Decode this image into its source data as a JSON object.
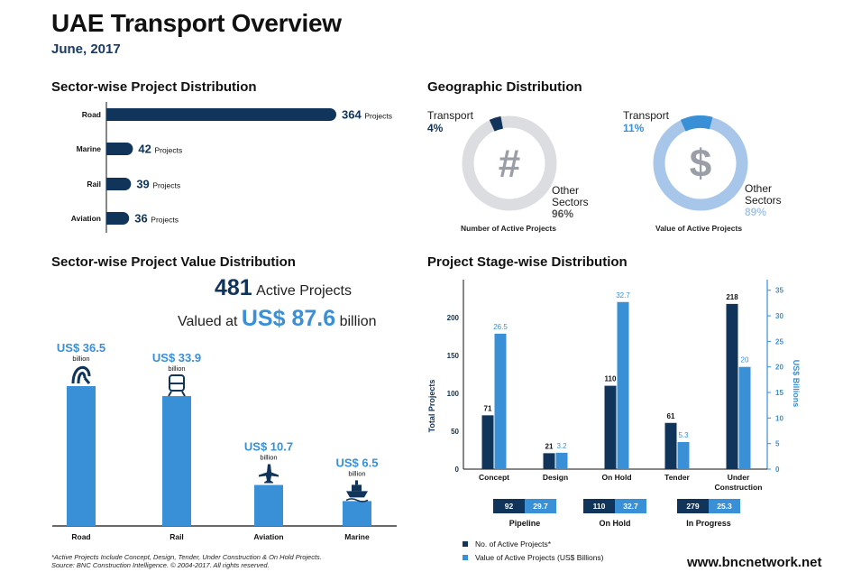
{
  "header": {
    "title": "UAE Transport Overview",
    "date": "June, 2017"
  },
  "sections": {
    "sector_projects": "Sector-wise Project Distribution",
    "geo": "Geographic Distribution",
    "sector_value": "Sector-wise Project Value Distribution",
    "stage": "Project Stage-wise Distribution"
  },
  "geo": {
    "left": {
      "transport_label": "Transport",
      "transport_pct": "4%",
      "other_label1": "Other",
      "other_label2": "Sectors",
      "other_pct": "96%",
      "caption": "Number of Active Projects",
      "icon_symbol": "#",
      "transport_value": 4
    },
    "right": {
      "transport_label": "Transport",
      "transport_pct": "11%",
      "other_label1": "Other",
      "other_label2": "Sectors",
      "other_pct": "89%",
      "caption": "Value of Active Projects",
      "icon_symbol": "$",
      "transport_value": 11
    }
  },
  "value_summary": {
    "count": "481",
    "count_text": "Active Projects",
    "valued_prefix": "Valued at",
    "valued_amount": "US$ 87.6",
    "valued_suffix": "billion"
  },
  "footer": {
    "note1": "*Active Projects Include Concept, Design, Tender, Under Construction & On Hold Projects.",
    "note2": "Source: BNC Construction Intelligence. © 2004-2017. All rights reserved.",
    "website": "www.bncnetwork.net"
  },
  "colors": {
    "navy": "#10345a",
    "blue": "#3a90d6",
    "light": "#a7c6ea",
    "ring": "#dcdde1"
  },
  "chart_data": [
    {
      "type": "bar",
      "orientation": "horizontal",
      "title": "Sector-wise Project Distribution",
      "categories": [
        "Road",
        "Marine",
        "Rail",
        "Aviation"
      ],
      "values": [
        364,
        42,
        39,
        36
      ],
      "value_suffix": "Projects"
    },
    {
      "type": "pie",
      "title": "Number of Active Projects",
      "labels": [
        "Transport",
        "Other Sectors"
      ],
      "values": [
        4,
        96
      ]
    },
    {
      "type": "pie",
      "title": "Value of Active Projects",
      "labels": [
        "Transport",
        "Other Sectors"
      ],
      "values": [
        11,
        89
      ]
    },
    {
      "type": "bar",
      "title": "Sector-wise Project Value Distribution",
      "categories": [
        "Road",
        "Rail",
        "Aviation",
        "Marine"
      ],
      "values": [
        36.5,
        33.9,
        10.7,
        6.5
      ],
      "value_labels": [
        "US$ 36.5",
        "US$ 33.9",
        "US$ 10.7",
        "US$ 6.5"
      ],
      "unit": "billion"
    },
    {
      "type": "bar",
      "title": "Project Stage-wise Distribution",
      "categories": [
        "Concept",
        "Design",
        "On Hold",
        "Tender",
        "Under Construction"
      ],
      "category_lines": [
        [
          "Concept"
        ],
        [
          "Design"
        ],
        [
          "On Hold"
        ],
        [
          "Tender"
        ],
        [
          "Under",
          "Construction"
        ]
      ],
      "ylabel": "Total Projects",
      "y2label": "US$ Billions",
      "ylim": [
        0,
        250
      ],
      "y2lim": [
        0,
        37
      ],
      "yticks": [
        0,
        50,
        100,
        150,
        200
      ],
      "y2ticks": [
        0,
        5,
        10,
        15,
        20,
        25,
        30,
        35
      ],
      "series": [
        {
          "name": "No. of Active Projects*",
          "axis": "left",
          "values": [
            71,
            21,
            110,
            61,
            218
          ]
        },
        {
          "name": "Value of Active Projects (US$ Billions)",
          "axis": "right",
          "values": [
            26.5,
            3.2,
            32.7,
            5.3,
            20
          ]
        }
      ],
      "summary": [
        {
          "label": "Pipeline",
          "projects": "92",
          "value": "29.7"
        },
        {
          "label": "On Hold",
          "projects": "110",
          "value": "32.7"
        },
        {
          "label": "In Progress",
          "projects": "279",
          "value": "25.3"
        }
      ]
    }
  ]
}
